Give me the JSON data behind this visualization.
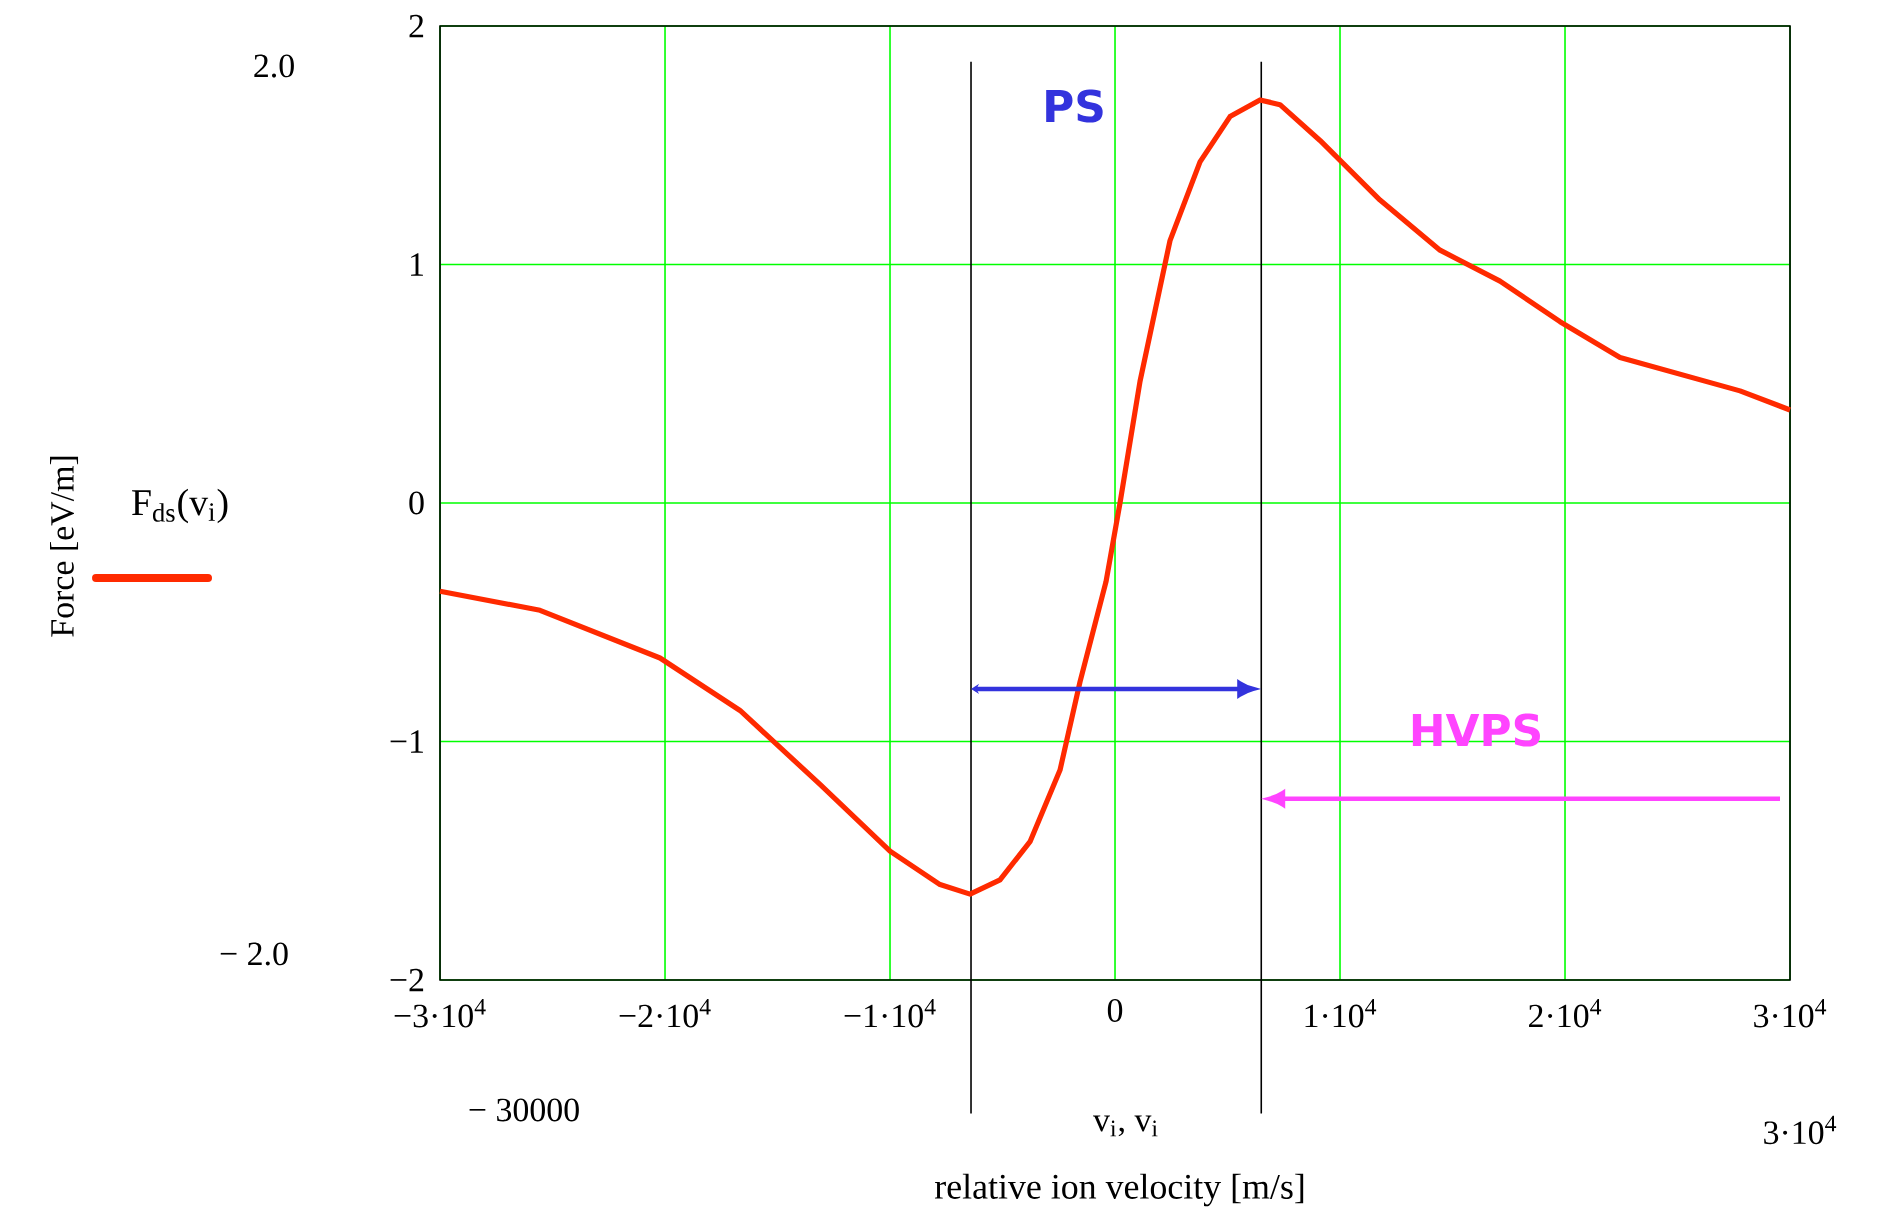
{
  "chart_data": {
    "type": "line",
    "xlabel": "relative ion velocity [m/s]",
    "xlim": [
      -30000,
      30000
    ],
    "ylim": [
      -2,
      2
    ],
    "xticks": [
      {
        "value": -30000,
        "label": "−3·10$^{4}$"
      },
      {
        "value": -20000,
        "label": "−2·10$^{4}$"
      },
      {
        "value": -10000,
        "label": "−1·10$^{4}$"
      },
      0,
      {
        "value": 10000,
        "label": "1·10$^{4}$"
      },
      {
        "value": 20000,
        "label": "2·10$^{4}$"
      },
      {
        "value": 30000,
        "label": "3·10$^{4}$"
      }
    ],
    "yticks": [
      {
        "value": -2,
        "label": "−2"
      },
      {
        "value": -1,
        "label": "−1"
      },
      0,
      1,
      2
    ],
    "grid": true,
    "legend": "left",
    "marker": "none",
    "line_style": "solid",
    "series": [
      {
        "name": "F$_{ds}$(v$_{i}$)",
        "color": "#ff2a00",
        "x": [
          -30000,
          -25556,
          -20222,
          -16667,
          -13111,
          -10000,
          -7778,
          -6444,
          -5111,
          -3778,
          -2444,
          -1556,
          -400,
          222,
          1111,
          2444,
          3778,
          5111,
          6444,
          7333,
          9111,
          11778,
          14444,
          17111,
          19778,
          22444,
          25111,
          27778,
          30000
        ],
        "values": [
          -0.37,
          -0.45,
          -0.65,
          -0.87,
          -1.18,
          -1.46,
          -1.6,
          -1.64,
          -1.58,
          -1.42,
          -1.12,
          -0.75,
          -0.33,
          0.0,
          0.51,
          1.1,
          1.43,
          1.62,
          1.69,
          1.67,
          1.52,
          1.27,
          1.06,
          0.93,
          0.76,
          0.61,
          0.54,
          0.47,
          0.39
        ]
      }
    ],
    "ref_lines": [
      {
        "axis": "x",
        "value": -6400,
        "color": "#000000"
      },
      {
        "axis": "x",
        "value": 6500,
        "color": "#000000"
      }
    ],
    "annotations": [
      "PS",
      "HVPS",
      "v$_{i}$, v$_{i}$",
      "2.0",
      "− 2.0",
      "− 30000",
      "3·10$^{4}$",
      "Force [eV/m]"
    ]
  }
}
